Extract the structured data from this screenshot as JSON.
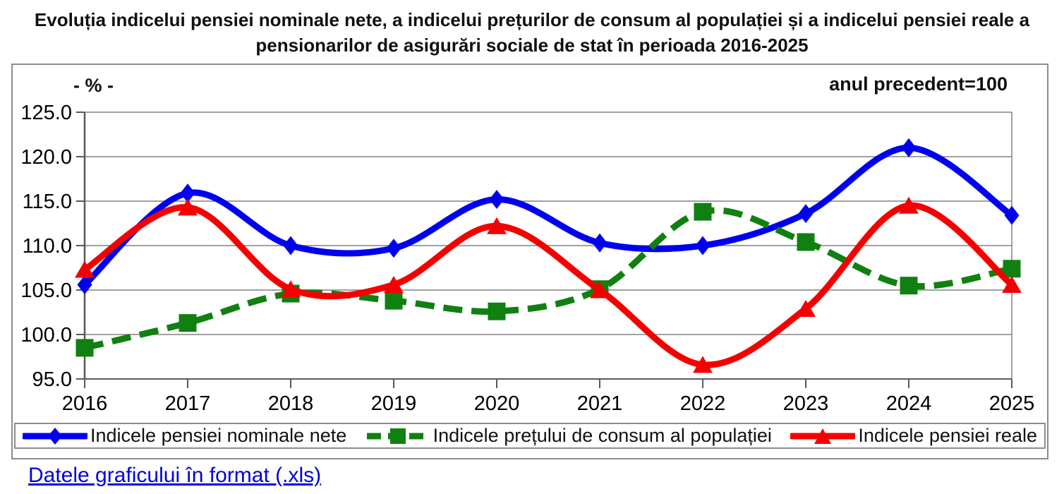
{
  "title": {
    "line1": "Evoluția indicelui pensiei nominale nete, a indicelui prețurilor de consum al populației și a indicelui pensiei reale a",
    "line2": "pensionarilor de asigurări sociale de stat în perioada 2016-2025"
  },
  "axis_unit_label": "- % -",
  "note": "anul precedent=100",
  "link_text": "Datele graficului în format (.xls)",
  "colors": {
    "series_blue": "#0000f0",
    "series_green": "#108010",
    "series_red": "#f50000",
    "grid": "#808080",
    "axis": "#595959",
    "link": "#0000e0",
    "frame_border": "#8c8c8c",
    "text": "#111111"
  },
  "chart_data": {
    "type": "line",
    "categories": [
      "2016",
      "2017",
      "2018",
      "2019",
      "2020",
      "2021",
      "2022",
      "2023",
      "2024",
      "2025"
    ],
    "series": [
      {
        "name": "Indicele pensiei nominale nete",
        "color": "#0000f0",
        "marker": "diamond",
        "dash": "solid",
        "values": [
          105.6,
          115.9,
          110.0,
          109.7,
          115.2,
          110.3,
          110.0,
          113.6,
          121.0,
          113.4
        ]
      },
      {
        "name": "Indicele prețului de consum al populației",
        "color": "#108010",
        "marker": "square",
        "dash": "dashed",
        "values": [
          98.5,
          101.3,
          104.6,
          103.8,
          102.6,
          105.1,
          113.8,
          110.4,
          105.5,
          107.4
        ]
      },
      {
        "name": "Indicele pensiei reale",
        "color": "#f50000",
        "marker": "triangle",
        "dash": "solid",
        "values": [
          107.3,
          114.3,
          105.1,
          105.6,
          112.2,
          105.0,
          96.6,
          102.9,
          114.5,
          105.6
        ]
      }
    ],
    "ylim": [
      95,
      125
    ],
    "yticks": [
      125,
      120,
      115,
      110,
      105,
      100,
      95
    ],
    "ytick_format_decimals": 1,
    "grid": true,
    "legend_position": "bottom",
    "xlabel": "",
    "ylabel": "- % -"
  }
}
